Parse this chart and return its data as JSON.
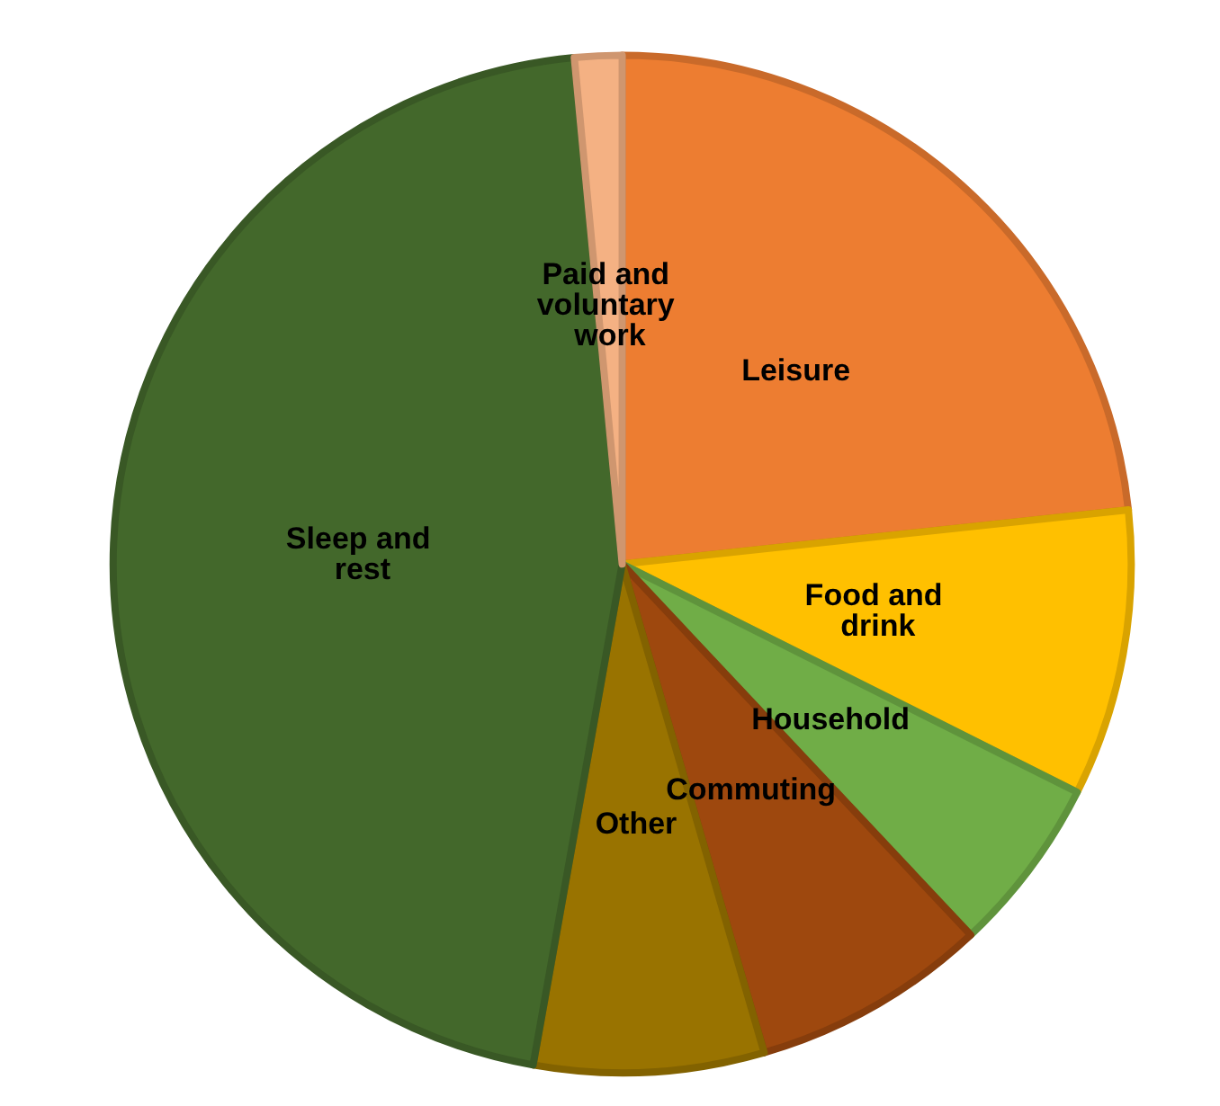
{
  "chart_data": {
    "type": "pie",
    "categories": [
      "Leisure",
      "Food and drink",
      "Household",
      "Commuting",
      "Other",
      "Sleep and rest",
      "Paid and voluntary work"
    ],
    "values": [
      23.3,
      9.1,
      5.6,
      7.5,
      7.3,
      45.7,
      1.5
    ],
    "colors": [
      "#ed7d31",
      "#ffc000",
      "#70ad47",
      "#9e480e",
      "#997300",
      "#43682b",
      "#f4b183"
    ],
    "legend": false
  }
}
